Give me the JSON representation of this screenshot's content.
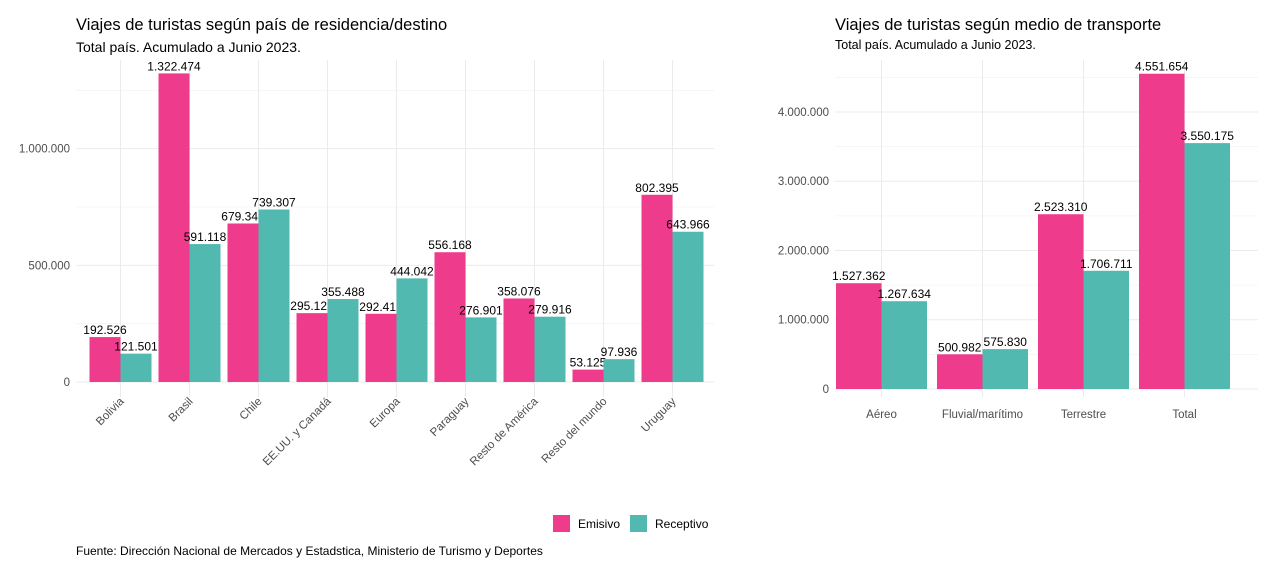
{
  "colors": {
    "emisivo": "#ef3b8c",
    "receptivo": "#52b9b1"
  },
  "legend": {
    "emisivo": "Emisivo",
    "receptivo": "Receptivo"
  },
  "source": "Fuente: Dirección Nacional de Mercados y Estadstica, Ministerio de Turismo y Deportes",
  "chart_data": [
    {
      "type": "bar",
      "title": "Viajes de turistas según país de residencia/destino",
      "subtitle": "Total país. Acumulado a Junio 2023.",
      "categories": [
        "Bolivia",
        "Brasil",
        "Chile",
        "EE.UU. y Canadá",
        "Europa",
        "Paraguay",
        "Resto de América",
        "Resto del mundo",
        "Uruguay"
      ],
      "series": [
        {
          "name": "Emisivo",
          "values": [
            192526,
            1322474,
            679348,
            295129,
            292412,
            556168,
            358076,
            53125,
            802395
          ],
          "labels": [
            "192.526",
            "1.322.474",
            "679.348",
            "295.129",
            "292.412",
            "556.168",
            "358.076",
            "53.125",
            "802.395"
          ]
        },
        {
          "name": "Receptivo",
          "values": [
            121501,
            591118,
            739307,
            355488,
            444042,
            276901,
            279916,
            97936,
            643966
          ],
          "labels": [
            "121.501",
            "591.118",
            "739.307",
            "355.488",
            "444.042",
            "276.901",
            "279.916",
            "97.936",
            "643.966"
          ]
        }
      ],
      "yticks": [
        0,
        500000,
        1000000
      ],
      "ytick_labels": [
        "0",
        "500.000",
        "1.000.000"
      ],
      "ylim": [
        0,
        1380000
      ],
      "grid": true,
      "legend_position": "bottom-right"
    },
    {
      "type": "bar",
      "title": "Viajes de turistas según medio de transporte",
      "subtitle": "Total país. Acumulado a Junio 2023.",
      "categories": [
        "Aéreo",
        "Fluvial/marítimo",
        "Terrestre",
        "Total"
      ],
      "series": [
        {
          "name": "Emisivo",
          "values": [
            1527362,
            500982,
            2523310,
            4551654
          ],
          "labels": [
            "1.527.362",
            "500.982",
            "2.523.310",
            "4.551.654"
          ]
        },
        {
          "name": "Receptivo",
          "values": [
            1267634,
            575830,
            1706711,
            3550175
          ],
          "labels": [
            "1.267.634",
            "575.830",
            "1.706.711",
            "3.550.175"
          ]
        }
      ],
      "yticks": [
        0,
        1000000,
        2000000,
        3000000,
        4000000
      ],
      "ytick_labels": [
        "0",
        "1.000.000",
        "2.000.000",
        "3.000.000",
        "4.000.000"
      ],
      "ylim": [
        0,
        4750000
      ],
      "grid": true
    }
  ]
}
